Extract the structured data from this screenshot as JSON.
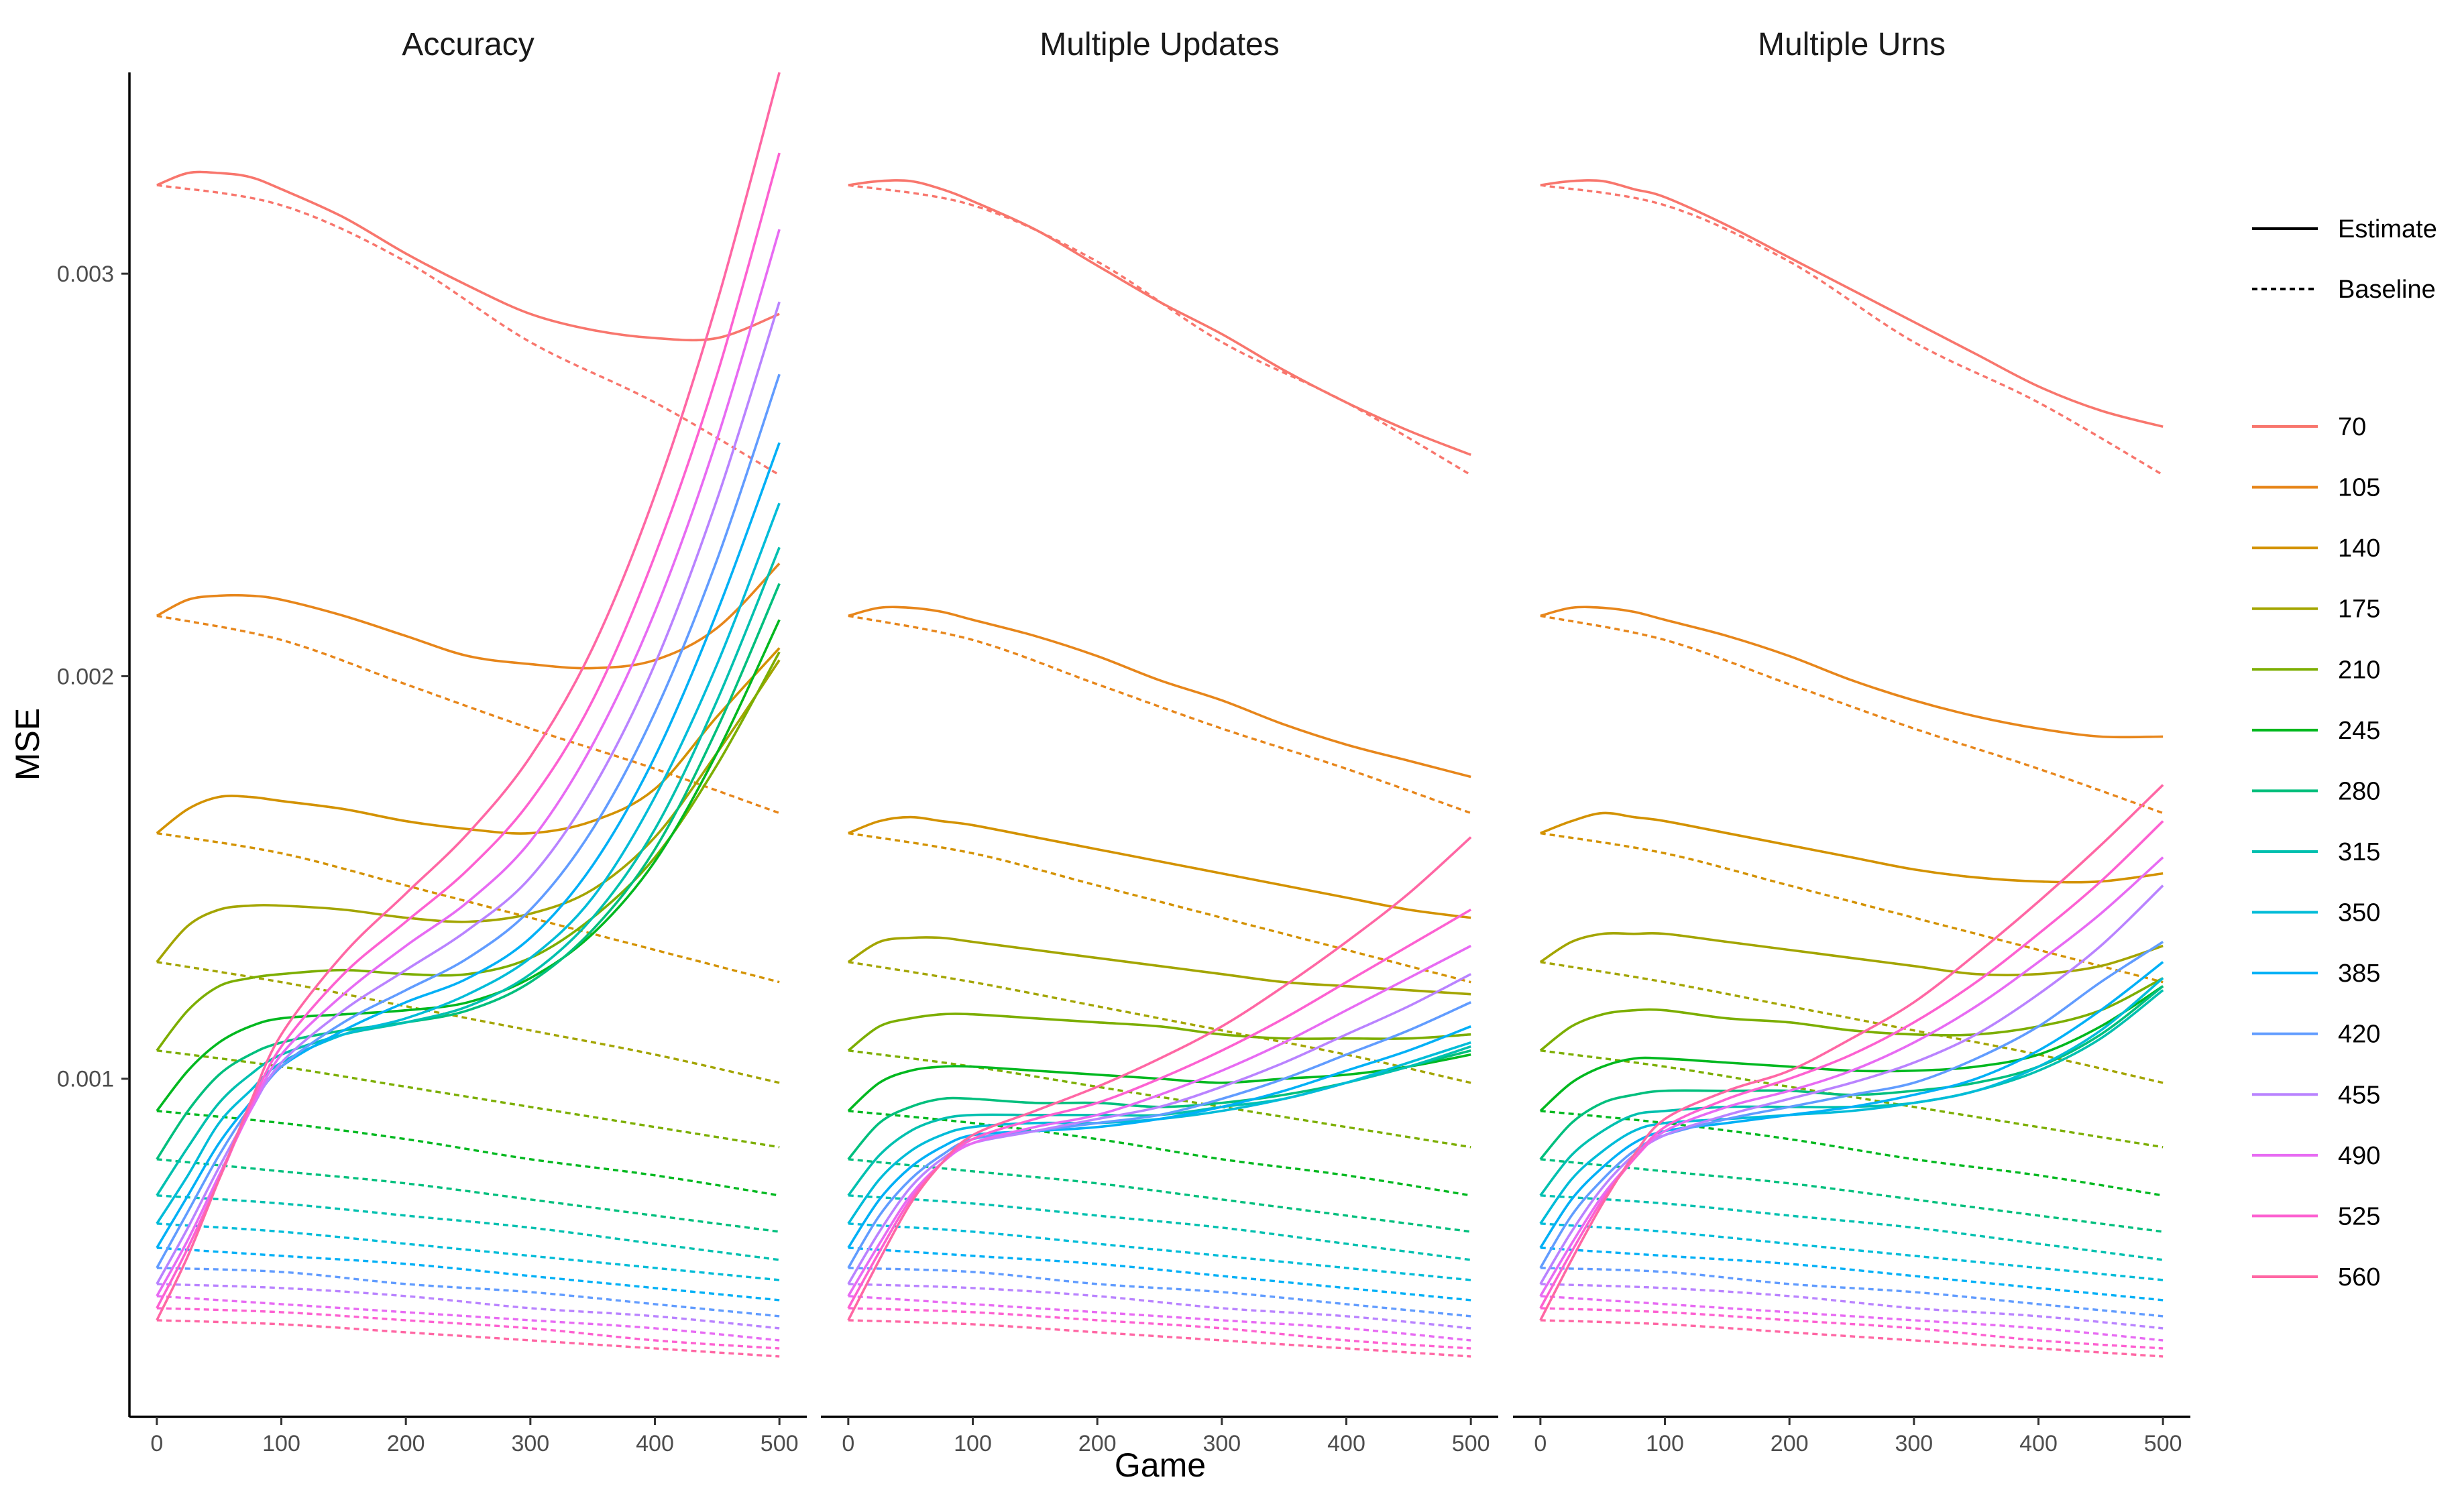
{
  "chart_data": {
    "type": "line",
    "facet_titles": [
      "Accuracy",
      "Multiple Updates",
      "Multiple Urns"
    ],
    "xlabel": "Game",
    "ylabel": "MSE",
    "x_ticks": [
      0,
      100,
      200,
      300,
      400,
      500
    ],
    "x_tick_labels": [
      "0",
      "100",
      "200",
      "300",
      "400",
      "500"
    ],
    "y_ticks": [
      0.001,
      0.002,
      0.003
    ],
    "y_tick_labels": [
      "0.001",
      "0.002",
      "0.003"
    ],
    "xlim": [
      -22,
      522
    ],
    "ylim": [
      0.00016,
      0.0035
    ],
    "grid": false,
    "legend_position": "right",
    "linetype_legend": [
      {
        "label": "Estimate",
        "dash": "solid"
      },
      {
        "label": "Baseline",
        "dash": "dashed"
      }
    ],
    "color_legend": [
      {
        "label": "70",
        "color": "#F8766D"
      },
      {
        "label": "105",
        "color": "#E7861B"
      },
      {
        "label": "140",
        "color": "#D39200"
      },
      {
        "label": "175",
        "color": "#A3A500"
      },
      {
        "label": "210",
        "color": "#7CAE00"
      },
      {
        "label": "245",
        "color": "#00B81F"
      },
      {
        "label": "280",
        "color": "#00BF7D"
      },
      {
        "label": "315",
        "color": "#00C0AF"
      },
      {
        "label": "350",
        "color": "#00BCD8"
      },
      {
        "label": "385",
        "color": "#00B0F6"
      },
      {
        "label": "420",
        "color": "#619CFF"
      },
      {
        "label": "455",
        "color": "#B983FF"
      },
      {
        "label": "490",
        "color": "#E76BF3"
      },
      {
        "label": "525",
        "color": "#FD61D1"
      },
      {
        "label": "560",
        "color": "#FF67A4"
      }
    ],
    "baseline_series": {
      "x": [
        0,
        100,
        200,
        300,
        400,
        500
      ],
      "by_group": {
        "70": [
          0.00322,
          0.00317,
          0.00303,
          0.00283,
          0.00268,
          0.0025
        ],
        "105": [
          0.00215,
          0.00209,
          0.00198,
          0.00187,
          0.00177,
          0.00166
        ],
        "140": [
          0.00161,
          0.00156,
          0.00148,
          0.0014,
          0.00132,
          0.00124
        ],
        "175": [
          0.00129,
          0.00124,
          0.00118,
          0.00112,
          0.00106,
          0.00099
        ],
        "210": [
          0.00107,
          0.00103,
          0.00098,
          0.00093,
          0.00088,
          0.00083
        ],
        "245": [
          0.00092,
          0.00089,
          0.00085,
          0.0008,
          0.00076,
          0.00071
        ],
        "280": [
          0.0008,
          0.00077,
          0.00074,
          0.0007,
          0.00066,
          0.00062
        ],
        "315": [
          0.00071,
          0.00069,
          0.00066,
          0.00063,
          0.00059,
          0.00055
        ],
        "350": [
          0.00064,
          0.00062,
          0.00059,
          0.00056,
          0.00053,
          0.0005
        ],
        "385": [
          0.00058,
          0.00056,
          0.00054,
          0.00051,
          0.00048,
          0.00045
        ],
        "420": [
          0.00053,
          0.00052,
          0.00049,
          0.00047,
          0.00044,
          0.00041
        ],
        "455": [
          0.00049,
          0.00048,
          0.00046,
          0.00043,
          0.00041,
          0.00038
        ],
        "490": [
          0.00046,
          0.00044,
          0.00042,
          0.0004,
          0.00038,
          0.00035
        ],
        "525": [
          0.00043,
          0.00042,
          0.0004,
          0.00038,
          0.00035,
          0.00033
        ],
        "560": [
          0.0004,
          0.00039,
          0.00037,
          0.00035,
          0.00033,
          0.00031
        ]
      }
    },
    "estimate_series": {
      "x": [
        0,
        25,
        50,
        75,
        100,
        150,
        200,
        250,
        300,
        350,
        400,
        450,
        500
      ],
      "by_panel": {
        "Accuracy": {
          "70": [
            0.00322,
            0.00325,
            0.00325,
            0.00324,
            0.00321,
            0.00314,
            0.00305,
            0.00297,
            0.0029,
            0.00286,
            0.00284,
            0.00284,
            0.0029
          ],
          "105": [
            0.00215,
            0.00219,
            0.0022,
            0.0022,
            0.00219,
            0.00215,
            0.0021,
            0.00205,
            0.00203,
            0.00202,
            0.00204,
            0.00212,
            0.00228
          ],
          "140": [
            0.00161,
            0.00167,
            0.0017,
            0.0017,
            0.00169,
            0.00167,
            0.00164,
            0.00162,
            0.00161,
            0.00164,
            0.00172,
            0.0019,
            0.00207
          ],
          "175": [
            0.00129,
            0.00138,
            0.00142,
            0.00143,
            0.00143,
            0.00142,
            0.0014,
            0.00139,
            0.00141,
            0.00147,
            0.0016,
            0.00181,
            0.00204
          ],
          "210": [
            0.00107,
            0.00117,
            0.00123,
            0.00125,
            0.00126,
            0.00127,
            0.00126,
            0.00126,
            0.0013,
            0.0014,
            0.00155,
            0.00178,
            0.00206
          ],
          "245": [
            0.00092,
            0.00102,
            0.00109,
            0.00113,
            0.00115,
            0.00116,
            0.00117,
            0.00119,
            0.00125,
            0.00136,
            0.00154,
            0.00181,
            0.00214
          ],
          "280": [
            0.0008,
            0.00092,
            0.00101,
            0.00106,
            0.00109,
            0.00112,
            0.00114,
            0.00117,
            0.00124,
            0.00137,
            0.00157,
            0.00187,
            0.00223
          ],
          "315": [
            0.00071,
            0.00083,
            0.00094,
            0.00101,
            0.00106,
            0.00111,
            0.00114,
            0.00118,
            0.00126,
            0.0014,
            0.00162,
            0.00194,
            0.00232
          ],
          "350": [
            0.00064,
            0.00076,
            0.00089,
            0.00097,
            0.00104,
            0.00111,
            0.00115,
            0.00121,
            0.0013,
            0.00145,
            0.0017,
            0.00203,
            0.00243
          ],
          "385": [
            0.00058,
            0.00071,
            0.00084,
            0.00094,
            0.00103,
            0.00112,
            0.00119,
            0.00125,
            0.00135,
            0.00153,
            0.0018,
            0.00216,
            0.00258
          ],
          "420": [
            0.00053,
            0.00067,
            0.00081,
            0.00093,
            0.00103,
            0.00114,
            0.00122,
            0.0013,
            0.00142,
            0.00162,
            0.00191,
            0.00229,
            0.00275
          ],
          "455": [
            0.00049,
            0.00063,
            0.00078,
            0.00092,
            0.00104,
            0.00117,
            0.00127,
            0.00137,
            0.0015,
            0.00172,
            0.00203,
            0.00244,
            0.00293
          ],
          "490": [
            0.00046,
            0.0006,
            0.00076,
            0.00092,
            0.00106,
            0.00121,
            0.00133,
            0.00144,
            0.00159,
            0.00183,
            0.00216,
            0.00259,
            0.00311
          ],
          "525": [
            0.00043,
            0.00058,
            0.00075,
            0.00093,
            0.00108,
            0.00126,
            0.00139,
            0.00152,
            0.00169,
            0.00194,
            0.0023,
            0.00275,
            0.0033
          ],
          "560": [
            0.0004,
            0.00056,
            0.00075,
            0.00094,
            0.00111,
            0.00131,
            0.00146,
            0.00161,
            0.0018,
            0.00207,
            0.00245,
            0.00293,
            0.0035
          ]
        },
        "Multiple Updates": {
          "70": [
            0.00322,
            0.00323,
            0.00323,
            0.00321,
            0.00318,
            0.00311,
            0.00302,
            0.00293,
            0.00285,
            0.00276,
            0.00268,
            0.00261,
            0.00255
          ],
          "105": [
            0.00215,
            0.00217,
            0.00217,
            0.00216,
            0.00214,
            0.0021,
            0.00205,
            0.00199,
            0.00194,
            0.00188,
            0.00183,
            0.00179,
            0.00175
          ],
          "140": [
            0.00161,
            0.00164,
            0.00165,
            0.00164,
            0.00163,
            0.0016,
            0.00157,
            0.00154,
            0.00151,
            0.00148,
            0.00145,
            0.00142,
            0.0014
          ],
          "175": [
            0.00129,
            0.00134,
            0.00135,
            0.00135,
            0.00134,
            0.00132,
            0.0013,
            0.00128,
            0.00126,
            0.00124,
            0.00123,
            0.00122,
            0.00121
          ],
          "210": [
            0.00107,
            0.00113,
            0.00115,
            0.00116,
            0.00116,
            0.00115,
            0.00114,
            0.00113,
            0.00111,
            0.0011,
            0.0011,
            0.0011,
            0.00111
          ],
          "245": [
            0.00092,
            0.00099,
            0.00102,
            0.00103,
            0.00103,
            0.00102,
            0.00101,
            0.001,
            0.00099,
            0.001,
            0.00101,
            0.00103,
            0.00106
          ],
          "280": [
            0.0008,
            0.00089,
            0.00093,
            0.00095,
            0.00095,
            0.00094,
            0.00094,
            0.00093,
            0.00094,
            0.00096,
            0.00099,
            0.00103,
            0.00107
          ],
          "315": [
            0.00071,
            0.00081,
            0.00087,
            0.0009,
            0.00091,
            0.00091,
            0.00091,
            0.00091,
            0.00093,
            0.00095,
            0.00099,
            0.00103,
            0.00108
          ],
          "350": [
            0.00064,
            0.00075,
            0.00082,
            0.00086,
            0.00088,
            0.00089,
            0.00089,
            0.0009,
            0.00092,
            0.00095,
            0.00099,
            0.00104,
            0.00109
          ],
          "385": [
            0.00058,
            0.0007,
            0.00078,
            0.00083,
            0.00086,
            0.00087,
            0.00088,
            0.0009,
            0.00093,
            0.00097,
            0.00102,
            0.00107,
            0.00113
          ],
          "420": [
            0.00053,
            0.00066,
            0.00075,
            0.00081,
            0.00085,
            0.00087,
            0.00089,
            0.00091,
            0.00095,
            0.001,
            0.00106,
            0.00112,
            0.00119
          ],
          "455": [
            0.00049,
            0.00062,
            0.00073,
            0.0008,
            0.00084,
            0.00087,
            0.0009,
            0.00093,
            0.00098,
            0.00104,
            0.00111,
            0.00118,
            0.00126
          ],
          "490": [
            0.00046,
            0.00059,
            0.00071,
            0.00079,
            0.00084,
            0.00088,
            0.00091,
            0.00096,
            0.00102,
            0.00109,
            0.00117,
            0.00125,
            0.00133
          ],
          "525": [
            0.00043,
            0.00057,
            0.0007,
            0.00079,
            0.00085,
            0.0009,
            0.00094,
            0.001,
            0.00107,
            0.00115,
            0.00124,
            0.00133,
            0.00142
          ],
          "560": [
            0.0004,
            0.00055,
            0.00069,
            0.00079,
            0.00086,
            0.00092,
            0.00098,
            0.00105,
            0.00113,
            0.00123,
            0.00134,
            0.00146,
            0.0016
          ]
        },
        "Multiple Urns": {
          "70": [
            0.00322,
            0.00323,
            0.00323,
            0.00321,
            0.00319,
            0.00312,
            0.00304,
            0.00296,
            0.00288,
            0.0028,
            0.00272,
            0.00266,
            0.00262
          ],
          "105": [
            0.00215,
            0.00217,
            0.00217,
            0.00216,
            0.00214,
            0.0021,
            0.00205,
            0.00199,
            0.00194,
            0.0019,
            0.00187,
            0.00185,
            0.00185
          ],
          "140": [
            0.00161,
            0.00164,
            0.00166,
            0.00165,
            0.00164,
            0.00161,
            0.00158,
            0.00155,
            0.00152,
            0.0015,
            0.00149,
            0.00149,
            0.00151
          ],
          "175": [
            0.00129,
            0.00134,
            0.00136,
            0.00136,
            0.00136,
            0.00134,
            0.00132,
            0.0013,
            0.00128,
            0.00126,
            0.00126,
            0.00128,
            0.00133
          ],
          "210": [
            0.00107,
            0.00113,
            0.00116,
            0.00117,
            0.00117,
            0.00115,
            0.00114,
            0.00112,
            0.00111,
            0.00111,
            0.00113,
            0.00117,
            0.00125
          ],
          "245": [
            0.00092,
            0.00099,
            0.00103,
            0.00105,
            0.00105,
            0.00104,
            0.00103,
            0.00102,
            0.00102,
            0.00103,
            0.00106,
            0.00113,
            0.00123
          ],
          "280": [
            0.0008,
            0.00089,
            0.00094,
            0.00096,
            0.00097,
            0.00097,
            0.00097,
            0.00096,
            0.00097,
            0.00099,
            0.00103,
            0.00111,
            0.00123
          ],
          "315": [
            0.00071,
            0.00081,
            0.00087,
            0.00091,
            0.00092,
            0.00093,
            0.00093,
            0.00093,
            0.00094,
            0.00097,
            0.00102,
            0.0011,
            0.00122
          ],
          "350": [
            0.00064,
            0.00075,
            0.00082,
            0.00087,
            0.00089,
            0.0009,
            0.00091,
            0.00092,
            0.00094,
            0.00097,
            0.00103,
            0.00112,
            0.00125
          ],
          "385": [
            0.00058,
            0.0007,
            0.00078,
            0.00084,
            0.00087,
            0.00089,
            0.00091,
            0.00093,
            0.00096,
            0.001,
            0.00107,
            0.00117,
            0.00129
          ],
          "420": [
            0.00053,
            0.00066,
            0.00075,
            0.00082,
            0.00086,
            0.0009,
            0.00093,
            0.00096,
            0.00099,
            0.00105,
            0.00113,
            0.00124,
            0.00134
          ],
          "455": [
            0.00049,
            0.00062,
            0.00073,
            0.00081,
            0.00086,
            0.00091,
            0.00095,
            0.00099,
            0.00104,
            0.00111,
            0.00121,
            0.00133,
            0.00148
          ],
          "490": [
            0.00046,
            0.00059,
            0.00071,
            0.0008,
            0.00087,
            0.00093,
            0.00097,
            0.00102,
            0.00109,
            0.00118,
            0.00129,
            0.00141,
            0.00155
          ],
          "525": [
            0.00043,
            0.00057,
            0.0007,
            0.0008,
            0.00088,
            0.00095,
            0.001,
            0.00106,
            0.00114,
            0.00124,
            0.00136,
            0.00149,
            0.00164
          ],
          "560": [
            0.0004,
            0.00055,
            0.00069,
            0.00081,
            0.0009,
            0.00097,
            0.00102,
            0.0011,
            0.00119,
            0.00131,
            0.00144,
            0.00158,
            0.00173
          ]
        }
      }
    }
  }
}
